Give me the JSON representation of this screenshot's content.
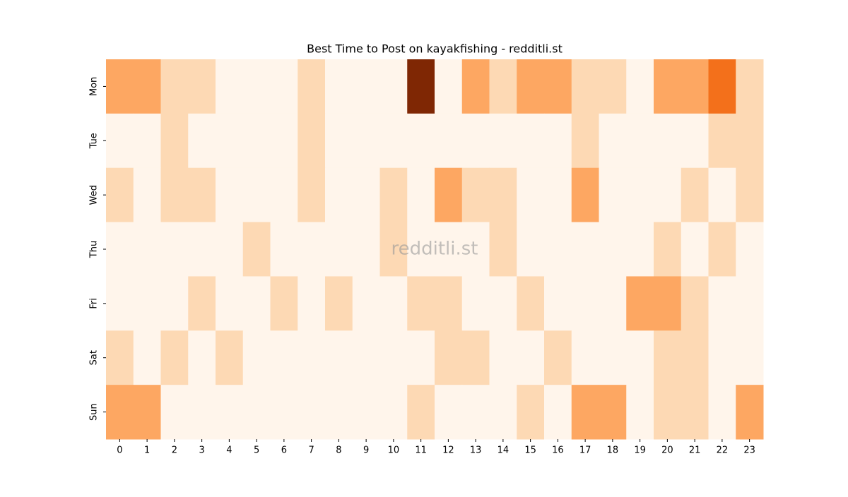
{
  "chart_data": {
    "type": "heatmap",
    "title": "Best Time to Post on kayakfishing - redditli.st",
    "watermark": "redditli.st",
    "x": [
      0,
      1,
      2,
      3,
      4,
      5,
      6,
      7,
      8,
      9,
      10,
      11,
      12,
      13,
      14,
      15,
      16,
      17,
      18,
      19,
      20,
      21,
      22,
      23
    ],
    "y": [
      "Mon",
      "Tue",
      "Wed",
      "Thu",
      "Fri",
      "Sat",
      "Sun"
    ],
    "values": [
      [
        2,
        2,
        1,
        1,
        0,
        0,
        0,
        1,
        0,
        0,
        0,
        5,
        0,
        2,
        1,
        2,
        2,
        1,
        1,
        0,
        2,
        2,
        3,
        1
      ],
      [
        0,
        0,
        1,
        0,
        0,
        0,
        0,
        1,
        0,
        0,
        0,
        0,
        0,
        0,
        0,
        0,
        0,
        1,
        0,
        0,
        0,
        0,
        1,
        1
      ],
      [
        1,
        0,
        1,
        1,
        0,
        0,
        0,
        1,
        0,
        0,
        1,
        0,
        2,
        1,
        1,
        0,
        0,
        2,
        0,
        0,
        0,
        1,
        0,
        1
      ],
      [
        0,
        0,
        0,
        0,
        0,
        1,
        0,
        0,
        0,
        0,
        1,
        0,
        0,
        0,
        1,
        0,
        0,
        0,
        0,
        0,
        1,
        0,
        1,
        0
      ],
      [
        0,
        0,
        0,
        1,
        0,
        0,
        1,
        0,
        1,
        0,
        0,
        1,
        1,
        0,
        0,
        1,
        0,
        0,
        0,
        2,
        2,
        1,
        0,
        0
      ],
      [
        1,
        0,
        1,
        0,
        1,
        0,
        0,
        0,
        0,
        0,
        0,
        0,
        1,
        1,
        0,
        0,
        1,
        0,
        0,
        0,
        1,
        1,
        0,
        0
      ],
      [
        2,
        2,
        0,
        0,
        0,
        0,
        0,
        0,
        0,
        0,
        0,
        1,
        0,
        0,
        0,
        1,
        0,
        2,
        2,
        0,
        1,
        1,
        0,
        2
      ]
    ],
    "colormap": [
      "#fff5eb",
      "#fee6ce",
      "#fdd0a2",
      "#fdae6b",
      "#fd8d3c",
      "#f16913",
      "#d94801",
      "#a63603",
      "#7f2704"
    ]
  }
}
